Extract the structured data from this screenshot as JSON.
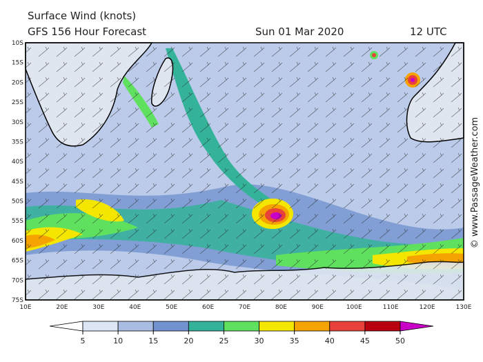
{
  "header": {
    "title": "Surface Wind (knots)",
    "subtitle": "GFS 156 Hour Forecast",
    "date": "Sun 01 Mar 2020",
    "time": "12 UTC"
  },
  "map": {
    "lat_labels": [
      "10S",
      "15S",
      "20S",
      "25S",
      "30S",
      "35S",
      "40S",
      "45S",
      "50S",
      "55S",
      "60S",
      "65S",
      "70S",
      "75S"
    ],
    "lon_labels": [
      "10E",
      "20E",
      "30E",
      "40E",
      "50E",
      "60E",
      "70E",
      "80E",
      "90E",
      "100E",
      "110E",
      "120E",
      "130E"
    ]
  },
  "colorbar": {
    "ticks": [
      5,
      10,
      15,
      20,
      25,
      30,
      35,
      40,
      45,
      50
    ],
    "colors": [
      "#ffffff",
      "#dde6f5",
      "#a9bde3",
      "#7393d0",
      "#35b39a",
      "#5fe05f",
      "#f5e600",
      "#f5a300",
      "#e8413a",
      "#b8000e",
      "#c800c8"
    ]
  },
  "credit": "© www.PassageWeather.com"
}
